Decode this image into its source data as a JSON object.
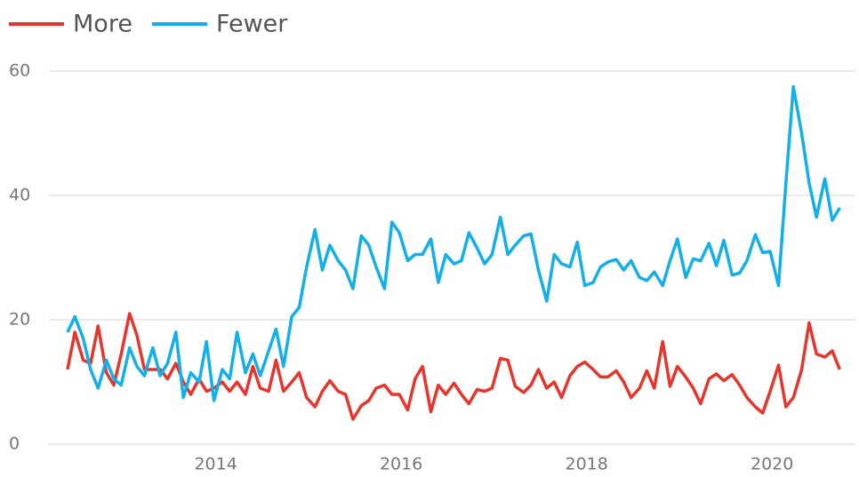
{
  "chart_data": {
    "type": "line",
    "legend": "top-left",
    "grid": true,
    "xlim": [
      2012.2,
      2020.9
    ],
    "xticks": [
      2014,
      2016,
      2018,
      2020
    ],
    "ylim": [
      0,
      60
    ],
    "yticks": [
      0,
      20,
      40,
      60
    ],
    "x": [
      2012.4,
      2012.48,
      2012.57,
      2012.65,
      2012.73,
      2012.82,
      2012.9,
      2012.98,
      2013.07,
      2013.15,
      2013.23,
      2013.32,
      2013.4,
      2013.48,
      2013.57,
      2013.65,
      2013.73,
      2013.82,
      2013.9,
      2013.98,
      2014.07,
      2014.15,
      2014.23,
      2014.32,
      2014.4,
      2014.48,
      2014.57,
      2014.65,
      2014.73,
      2014.82,
      2014.9,
      2014.98,
      2015.07,
      2015.15,
      2015.23,
      2015.32,
      2015.4,
      2015.48,
      2015.57,
      2015.65,
      2015.73,
      2015.82,
      2015.9,
      2015.98,
      2016.07,
      2016.15,
      2016.23,
      2016.32,
      2016.4,
      2016.48,
      2016.57,
      2016.65,
      2016.73,
      2016.82,
      2016.9,
      2016.98,
      2017.07,
      2017.15,
      2017.23,
      2017.32,
      2017.4,
      2017.48,
      2017.57,
      2017.65,
      2017.73,
      2017.82,
      2017.9,
      2017.98,
      2018.07,
      2018.15,
      2018.23,
      2018.32,
      2018.4,
      2018.48,
      2018.57,
      2018.65,
      2018.73,
      2018.82,
      2018.9,
      2018.98,
      2019.07,
      2019.15,
      2019.23,
      2019.32,
      2019.4,
      2019.48,
      2019.57,
      2019.65,
      2019.73,
      2019.82,
      2019.9,
      2019.98,
      2020.07,
      2020.15,
      2020.23,
      2020.32,
      2020.4,
      2020.48,
      2020.57,
      2020.65,
      2020.73
    ],
    "series": [
      {
        "name": "More",
        "color": "#e8352b",
        "values": [
          12,
          18,
          13.5,
          13,
          19,
          11.5,
          9.5,
          14.5,
          21,
          17.5,
          12,
          12,
          12,
          10.5,
          13,
          10,
          8,
          10.5,
          8.5,
          9,
          10,
          8.5,
          10,
          8,
          12.5,
          9,
          8.5,
          13.5,
          8.5,
          10,
          11.5,
          7.5,
          6,
          8.5,
          10.2,
          8.5,
          8,
          4,
          6.2,
          7,
          9,
          9.5,
          8,
          8,
          5.5,
          10.5,
          12.5,
          5.2,
          9.5,
          8,
          9.8,
          8,
          6.5,
          8.8,
          8.5,
          9,
          13.8,
          13.5,
          9.3,
          8.3,
          9.5,
          12,
          9,
          10,
          7.5,
          11,
          12.5,
          13.2,
          12,
          10.8,
          10.8,
          11.8,
          10,
          7.5,
          9,
          11.8,
          9,
          16.5,
          9.3,
          12.5,
          10.8,
          9,
          6.5,
          10.5,
          11.3,
          10.2,
          11.2,
          9.5,
          7.5,
          6,
          5,
          8.5,
          12.7,
          6,
          7.5,
          12,
          19.5,
          14.5,
          14,
          15,
          12
        ]
      },
      {
        "name": "Fewer",
        "color": "#12afe8",
        "values": [
          18,
          20.5,
          17,
          12,
          9,
          13.5,
          10.5,
          9.5,
          15.5,
          12.5,
          11,
          15.5,
          11,
          13,
          18,
          7.5,
          11.5,
          10,
          16.5,
          7,
          12,
          10.5,
          18,
          11.5,
          14.5,
          11,
          15,
          18.5,
          12.5,
          20.5,
          22,
          28.5,
          34.5,
          28,
          32,
          29.5,
          28,
          25,
          33.5,
          32,
          28.5,
          25,
          35.7,
          34,
          29.5,
          30.5,
          30.5,
          33,
          26,
          30.5,
          29,
          29.5,
          34,
          31.5,
          29,
          30.5,
          36.5,
          30.5,
          32,
          33.5,
          33.8,
          28,
          23,
          30.5,
          29,
          28.5,
          32.5,
          25.5,
          26,
          28.5,
          29.3,
          29.7,
          28,
          29.5,
          26.8,
          26.3,
          27.7,
          25.5,
          29.5,
          33,
          26.8,
          29.8,
          29.5,
          32.3,
          28.7,
          32.8,
          27.2,
          27.5,
          29.5,
          33.7,
          30.8,
          31,
          25.5,
          42,
          57.5,
          50,
          42,
          36.5,
          42.7,
          36,
          38
        ]
      }
    ]
  }
}
